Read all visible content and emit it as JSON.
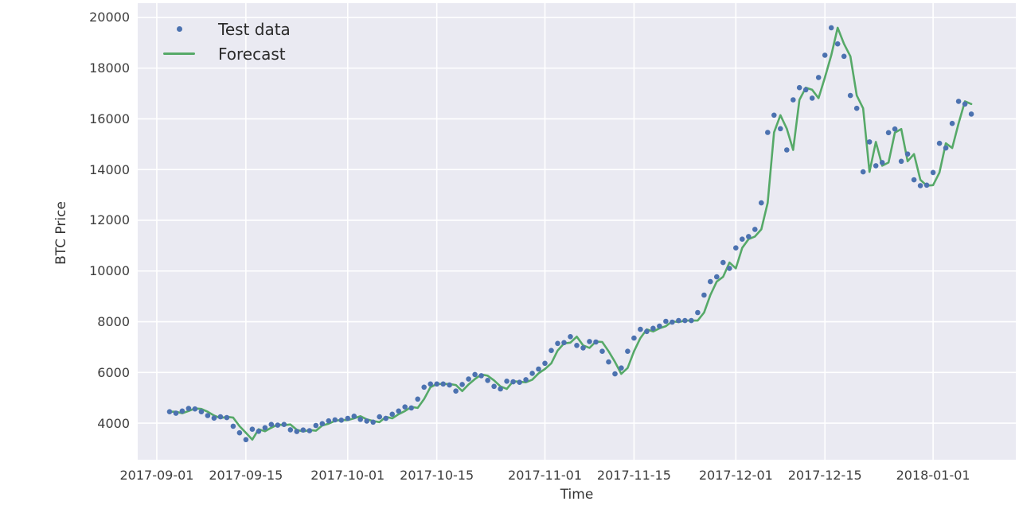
{
  "chart_data": {
    "type": "line+scatter",
    "title": "",
    "xlabel": "Time",
    "ylabel": "BTC Price",
    "grid": true,
    "legend_position": "upper left",
    "plot_bg_color": "#eaeaf2",
    "grid_color": "#ffffff",
    "x_start_date": "2017-09-03",
    "x_interval_days": 1,
    "x_domain": [
      "2017-08-29",
      "2018-01-14"
    ],
    "y_domain": [
      2560,
      20560
    ],
    "y_ticks": [
      4000,
      6000,
      8000,
      10000,
      12000,
      14000,
      16000,
      18000,
      20000
    ],
    "x_ticks": [
      "2017-09-01",
      "2017-09-15",
      "2017-10-01",
      "2017-10-15",
      "2017-11-01",
      "2017-11-15",
      "2017-12-01",
      "2017-12-15",
      "2018-01-01"
    ],
    "legend": [
      {
        "label": "Test data",
        "marker": "dot",
        "color": "#4c72b0"
      },
      {
        "label": "Forecast",
        "marker": "line",
        "color": "#56a968"
      }
    ],
    "series": [
      {
        "name": "Test data",
        "type": "scatter",
        "color": "#4c72b0",
        "values": [
          4450,
          4390,
          4480,
          4580,
          4560,
          4450,
          4300,
          4200,
          4250,
          4220,
          3880,
          3620,
          3350,
          3760,
          3680,
          3820,
          3950,
          3920,
          3950,
          3740,
          3670,
          3730,
          3700,
          3910,
          3980,
          4090,
          4130,
          4120,
          4190,
          4275,
          4150,
          4085,
          4040,
          4250,
          4190,
          4355,
          4480,
          4640,
          4600,
          4950,
          5420,
          5545,
          5545,
          5545,
          5505,
          5265,
          5525,
          5740,
          5920,
          5870,
          5685,
          5450,
          5350,
          5655,
          5630,
          5610,
          5715,
          5965,
          6135,
          6360,
          6865,
          7145,
          7175,
          7410,
          7065,
          6970,
          7220,
          7200,
          6835,
          6415,
          5945,
          6175,
          6835,
          7355,
          7700,
          7615,
          7740,
          7825,
          8015,
          7985,
          8045,
          8045,
          8045,
          8360,
          9050,
          9580,
          9770,
          10335,
          10105,
          10910,
          11255,
          11360,
          11640,
          12685,
          15465,
          16145,
          15610,
          14775,
          16750,
          17230,
          17145,
          16815,
          17630,
          18510,
          19590,
          18955,
          18465,
          16920,
          16415,
          13910,
          15090,
          14150,
          14275,
          15455,
          15600,
          14325,
          14610,
          13595,
          13365,
          13385,
          13885,
          15035,
          14850,
          15820,
          16690,
          16585,
          16190
        ]
      },
      {
        "name": "Forecast",
        "type": "line",
        "color": "#56a968",
        "values": [
          4450,
          4450,
          4390,
          4480,
          4580,
          4560,
          4450,
          4300,
          4200,
          4250,
          4220,
          3880,
          3620,
          3350,
          3760,
          3680,
          3820,
          3950,
          3920,
          3950,
          3740,
          3670,
          3730,
          3700,
          3910,
          3980,
          4090,
          4130,
          4120,
          4190,
          4275,
          4150,
          4085,
          4040,
          4250,
          4190,
          4355,
          4480,
          4640,
          4600,
          4950,
          5420,
          5545,
          5545,
          5545,
          5505,
          5265,
          5525,
          5740,
          5920,
          5870,
          5685,
          5450,
          5350,
          5655,
          5630,
          5610,
          5715,
          5965,
          6135,
          6360,
          6865,
          7145,
          7175,
          7410,
          7065,
          6970,
          7220,
          7200,
          6835,
          6415,
          5945,
          6175,
          6835,
          7355,
          7700,
          7615,
          7740,
          7825,
          8015,
          7985,
          8045,
          8045,
          8045,
          8360,
          9050,
          9580,
          9770,
          10335,
          10105,
          10910,
          11255,
          11360,
          11640,
          12685,
          15465,
          16145,
          15610,
          14775,
          16750,
          17230,
          17145,
          16815,
          17630,
          18510,
          19590,
          18955,
          18465,
          16920,
          16415,
          13910,
          15090,
          14150,
          14275,
          15455,
          15600,
          14325,
          14610,
          13595,
          13365,
          13385,
          13885,
          15035,
          14850,
          15820,
          16690,
          16585
        ]
      }
    ]
  }
}
